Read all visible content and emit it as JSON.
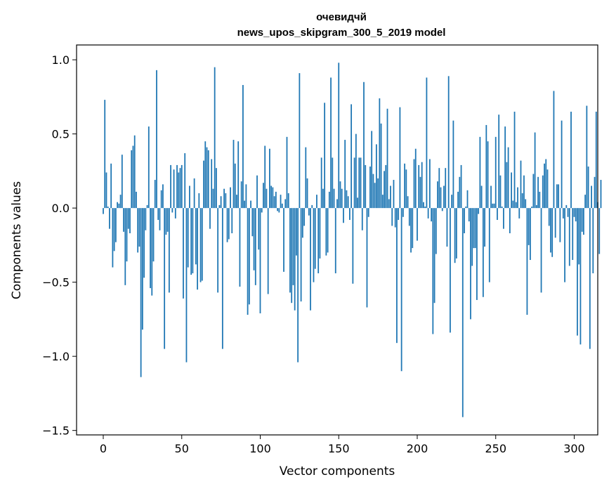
{
  "chart_data": {
    "type": "bar",
    "title": "очевидчй",
    "subtitle": "news_upos_skipgram_300_5_2019 model",
    "xlabel": "Vector components",
    "ylabel": "Components values",
    "xlim": [
      -17,
      315
    ],
    "ylim": [
      -1.53,
      1.1
    ],
    "x_ticks": [
      0,
      50,
      100,
      150,
      200,
      250,
      300
    ],
    "y_ticks": [
      1.0,
      0.5,
      0.0,
      -0.5,
      -1.0,
      -1.5
    ],
    "x_tick_labels": [
      "0",
      "50",
      "100",
      "150",
      "200",
      "250",
      "300"
    ],
    "y_tick_labels": [
      "1.0",
      "0.5",
      "0.0",
      "−0.5",
      "−1.0",
      "−1.5"
    ],
    "bar_color": "#1f77b4",
    "grid": false,
    "values": [
      -0.04,
      0.73,
      0.24,
      0.01,
      -0.14,
      0.3,
      -0.4,
      -0.29,
      -0.23,
      0.04,
      0.03,
      0.09,
      0.36,
      -0.16,
      -0.52,
      -0.36,
      -0.14,
      -0.17,
      0.39,
      0.42,
      0.49,
      0.11,
      -0.3,
      -0.26,
      -1.14,
      -0.82,
      -0.47,
      -0.15,
      0.02,
      0.55,
      -0.54,
      -0.59,
      -0.36,
      0.19,
      0.93,
      -0.08,
      -0.15,
      0.12,
      0.16,
      -0.95,
      -0.18,
      -0.16,
      -0.57,
      0.29,
      -0.03,
      0.26,
      -0.07,
      0.29,
      0.24,
      0.27,
      0.29,
      -0.61,
      0.37,
      -1.04,
      -0.4,
      0.15,
      -0.45,
      -0.44,
      0.2,
      -0.38,
      -0.55,
      0.1,
      -0.5,
      -0.49,
      0.32,
      0.45,
      0.41,
      0.39,
      -0.14,
      0.33,
      0.13,
      0.95,
      0.27,
      -0.57,
      0.02,
      0.08,
      -0.95,
      0.13,
      0.1,
      -0.23,
      -0.21,
      0.14,
      -0.17,
      0.46,
      0.3,
      0.09,
      0.45,
      -0.53,
      0.18,
      0.83,
      0.05,
      0.16,
      -0.72,
      -0.65,
      0.05,
      -0.19,
      -0.42,
      -0.52,
      0.22,
      -0.28,
      -0.71,
      -0.03,
      0.17,
      0.42,
      0.13,
      -0.58,
      0.4,
      0.15,
      0.14,
      0.08,
      0.11,
      -0.02,
      -0.03,
      0.09,
      0.03,
      -0.43,
      0.06,
      0.48,
      0.1,
      -0.57,
      -0.64,
      -0.52,
      -0.69,
      -0.32,
      -1.04,
      0.91,
      -0.63,
      -0.2,
      -0.12,
      0.41,
      0.2,
      -0.05,
      -0.69,
      0.02,
      -0.5,
      -0.41,
      0.09,
      -0.44,
      -0.34,
      0.34,
      0.13,
      0.71,
      -0.32,
      -0.3,
      0.11,
      0.88,
      0.34,
      0.13,
      -0.44,
      0.06,
      0.98,
      0.18,
      0.13,
      -0.1,
      0.46,
      0.12,
      0.08,
      -0.08,
      0.7,
      -0.51,
      0.34,
      0.5,
      0.07,
      0.34,
      0.34,
      -0.15,
      0.85,
      0.29,
      -0.67,
      -0.06,
      0.28,
      0.52,
      0.23,
      0.17,
      0.43,
      0.2,
      0.74,
      0.57,
      0.09,
      0.25,
      0.29,
      0.67,
      0.06,
      0.15,
      -0.12,
      0.19,
      -0.13,
      -0.91,
      -0.08,
      0.68,
      -1.1,
      -0.06,
      0.3,
      0.26,
      0.08,
      -0.12,
      -0.3,
      -0.27,
      0.33,
      0.4,
      -0.22,
      0.29,
      0.21,
      0.31,
      0.04,
      0.01,
      0.88,
      -0.07,
      0.33,
      -0.09,
      -0.85,
      -0.64,
      -0.31,
      0.18,
      0.27,
      0.14,
      -0.02,
      0.15,
      0.27,
      -0.26,
      0.89,
      -0.84,
      0.09,
      0.59,
      -0.37,
      -0.34,
      0.11,
      0.21,
      0.29,
      -1.41,
      -0.17,
      0.01,
      0.12,
      -0.09,
      -0.75,
      -0.39,
      -0.27,
      -0.27,
      -0.62,
      -0.04,
      0.48,
      0.15,
      -0.6,
      -0.26,
      0.56,
      0.45,
      -0.5,
      0.15,
      0.03,
      0.03,
      0.48,
      -0.08,
      0.63,
      0.22,
      0.01,
      -0.14,
      0.55,
      0.31,
      0.41,
      -0.17,
      0.24,
      0.05,
      0.65,
      0.04,
      0.14,
      -0.07,
      0.32,
      0.1,
      0.22,
      0.06,
      -0.72,
      -0.25,
      -0.35,
      0.01,
      0.23,
      0.51,
      0.02,
      0.21,
      0.11,
      -0.57,
      0.22,
      0.3,
      0.33,
      0.26,
      -0.12,
      -0.3,
      -0.33,
      0.79,
      -0.2,
      0.16,
      0.16,
      -0.23,
      0.59,
      -0.07,
      -0.5,
      0.02,
      -0.06,
      -0.39,
      0.65,
      -0.35,
      -0.06,
      -0.09,
      -0.86,
      -0.38,
      -0.92,
      -0.16,
      -0.18,
      0.09,
      0.69,
      0.28,
      -0.95,
      0.15,
      -0.44,
      0.21,
      0.65,
      0.04,
      -0.31,
      0.19
    ]
  }
}
